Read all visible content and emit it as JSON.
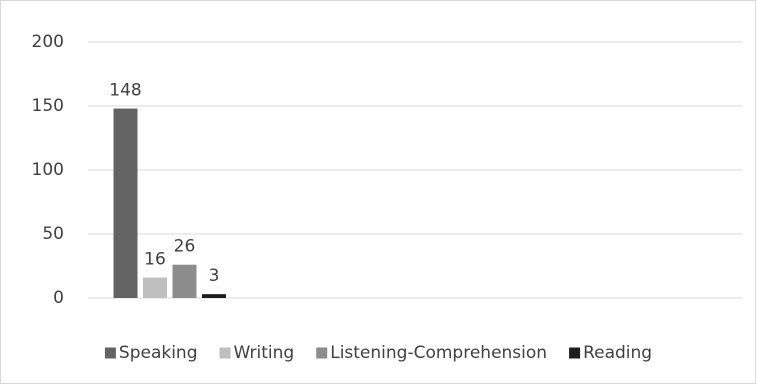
{
  "chart_data": {
    "type": "bar",
    "categories": [
      null,
      null,
      null,
      null
    ],
    "series": [
      {
        "name": "Speaking",
        "color": "#636363",
        "values": [
          148,
          null,
          null,
          null
        ]
      },
      {
        "name": "Writing",
        "color": "#bfbfbf",
        "values": [
          16,
          null,
          null,
          null
        ]
      },
      {
        "name": "Listening-Comprehension",
        "color": "#8c8c8c",
        "values": [
          26,
          null,
          null,
          null
        ]
      },
      {
        "name": "Reading",
        "color": "#1e1e1e",
        "values": [
          3,
          null,
          null,
          null
        ]
      }
    ],
    "ylim": [
      0,
      200
    ],
    "yticks": [
      0,
      50,
      100,
      150,
      200
    ],
    "grid": true,
    "legend": "bottom"
  }
}
